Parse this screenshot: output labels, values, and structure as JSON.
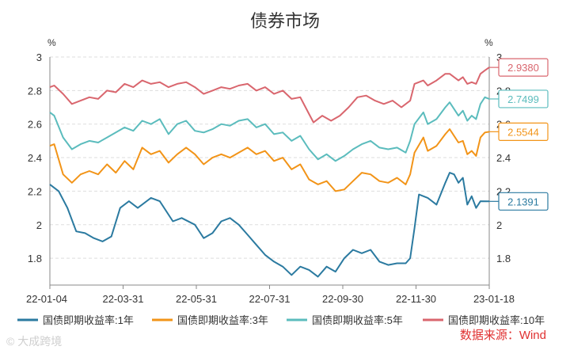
{
  "chart_data": {
    "type": "line",
    "title": "债券市场",
    "unit_left": "%",
    "unit_right": "%",
    "x_tick_labels": [
      "22-01-04",
      "22-03-31",
      "22-05-31",
      "22-07-31",
      "22-09-30",
      "22-11-30",
      "23-01-18"
    ],
    "y_ticks_left": [
      "3",
      "2.8",
      "2.6",
      "2.4",
      "2.2",
      "2",
      "1.8"
    ],
    "y_ticks_right": [
      "3",
      "2.8",
      "2.6",
      "2.4",
      "2.2",
      "2",
      "1.8"
    ],
    "ylim": [
      1.64,
      3.0
    ],
    "grid": "horizontal-dashed",
    "legend_position": "bottom",
    "source": "数据来源：Wind",
    "watermark": "© 大成跨境",
    "series": [
      {
        "name": "国债即期收益率:1年",
        "color": "#2b7aa0",
        "last_label": "2.1391",
        "points": [
          [
            0,
            2.24
          ],
          [
            0.02,
            2.2
          ],
          [
            0.04,
            2.1
          ],
          [
            0.06,
            1.96
          ],
          [
            0.08,
            1.95
          ],
          [
            0.1,
            1.92
          ],
          [
            0.12,
            1.9
          ],
          [
            0.14,
            1.93
          ],
          [
            0.16,
            2.1
          ],
          [
            0.18,
            2.14
          ],
          [
            0.2,
            2.1
          ],
          [
            0.23,
            2.16
          ],
          [
            0.25,
            2.14
          ],
          [
            0.28,
            2.02
          ],
          [
            0.3,
            2.04
          ],
          [
            0.33,
            2.0
          ],
          [
            0.35,
            1.92
          ],
          [
            0.37,
            1.95
          ],
          [
            0.39,
            2.02
          ],
          [
            0.41,
            2.04
          ],
          [
            0.43,
            2.0
          ],
          [
            0.45,
            1.94
          ],
          [
            0.47,
            1.88
          ],
          [
            0.49,
            1.82
          ],
          [
            0.51,
            1.78
          ],
          [
            0.53,
            1.75
          ],
          [
            0.55,
            1.7
          ],
          [
            0.57,
            1.75
          ],
          [
            0.59,
            1.73
          ],
          [
            0.61,
            1.69
          ],
          [
            0.63,
            1.75
          ],
          [
            0.65,
            1.72
          ],
          [
            0.67,
            1.8
          ],
          [
            0.69,
            1.85
          ],
          [
            0.71,
            1.83
          ],
          [
            0.73,
            1.85
          ],
          [
            0.75,
            1.78
          ],
          [
            0.77,
            1.76
          ],
          [
            0.79,
            1.77
          ],
          [
            0.81,
            1.77
          ],
          [
            0.82,
            1.8
          ],
          [
            0.83,
            1.98
          ],
          [
            0.84,
            2.18
          ],
          [
            0.86,
            2.16
          ],
          [
            0.88,
            2.12
          ],
          [
            0.9,
            2.25
          ],
          [
            0.91,
            2.31
          ],
          [
            0.92,
            2.3
          ],
          [
            0.93,
            2.25
          ],
          [
            0.94,
            2.28
          ],
          [
            0.95,
            2.12
          ],
          [
            0.96,
            2.17
          ],
          [
            0.97,
            2.1
          ],
          [
            0.98,
            2.14
          ],
          [
            1,
            2.1391
          ]
        ]
      },
      {
        "name": "国债即期收益率:3年",
        "color": "#f29418",
        "last_label": "2.5544",
        "points": [
          [
            0,
            2.47
          ],
          [
            0.01,
            2.48
          ],
          [
            0.03,
            2.3
          ],
          [
            0.05,
            2.25
          ],
          [
            0.07,
            2.3
          ],
          [
            0.09,
            2.32
          ],
          [
            0.11,
            2.3
          ],
          [
            0.13,
            2.36
          ],
          [
            0.15,
            2.31
          ],
          [
            0.17,
            2.38
          ],
          [
            0.19,
            2.33
          ],
          [
            0.21,
            2.46
          ],
          [
            0.23,
            2.42
          ],
          [
            0.25,
            2.44
          ],
          [
            0.27,
            2.37
          ],
          [
            0.29,
            2.42
          ],
          [
            0.31,
            2.46
          ],
          [
            0.33,
            2.42
          ],
          [
            0.35,
            2.36
          ],
          [
            0.37,
            2.4
          ],
          [
            0.39,
            2.42
          ],
          [
            0.41,
            2.4
          ],
          [
            0.43,
            2.43
          ],
          [
            0.45,
            2.46
          ],
          [
            0.47,
            2.42
          ],
          [
            0.49,
            2.44
          ],
          [
            0.51,
            2.38
          ],
          [
            0.53,
            2.4
          ],
          [
            0.55,
            2.33
          ],
          [
            0.57,
            2.36
          ],
          [
            0.59,
            2.27
          ],
          [
            0.61,
            2.24
          ],
          [
            0.63,
            2.26
          ],
          [
            0.65,
            2.2
          ],
          [
            0.67,
            2.21
          ],
          [
            0.69,
            2.26
          ],
          [
            0.71,
            2.31
          ],
          [
            0.73,
            2.3
          ],
          [
            0.75,
            2.26
          ],
          [
            0.77,
            2.25
          ],
          [
            0.79,
            2.28
          ],
          [
            0.81,
            2.24
          ],
          [
            0.82,
            2.3
          ],
          [
            0.83,
            2.43
          ],
          [
            0.85,
            2.52
          ],
          [
            0.86,
            2.44
          ],
          [
            0.88,
            2.47
          ],
          [
            0.9,
            2.54
          ],
          [
            0.91,
            2.57
          ],
          [
            0.93,
            2.49
          ],
          [
            0.94,
            2.5
          ],
          [
            0.95,
            2.42
          ],
          [
            0.96,
            2.44
          ],
          [
            0.97,
            2.41
          ],
          [
            0.98,
            2.52
          ],
          [
            0.99,
            2.55
          ],
          [
            1,
            2.5544
          ]
        ]
      },
      {
        "name": "国债即期收益率:5年",
        "color": "#5bbcbd",
        "last_label": "2.7499",
        "points": [
          [
            0,
            2.67
          ],
          [
            0.01,
            2.65
          ],
          [
            0.03,
            2.52
          ],
          [
            0.05,
            2.45
          ],
          [
            0.07,
            2.48
          ],
          [
            0.09,
            2.5
          ],
          [
            0.11,
            2.49
          ],
          [
            0.13,
            2.52
          ],
          [
            0.15,
            2.55
          ],
          [
            0.17,
            2.58
          ],
          [
            0.19,
            2.56
          ],
          [
            0.21,
            2.62
          ],
          [
            0.23,
            2.6
          ],
          [
            0.25,
            2.63
          ],
          [
            0.27,
            2.54
          ],
          [
            0.29,
            2.6
          ],
          [
            0.31,
            2.62
          ],
          [
            0.33,
            2.56
          ],
          [
            0.35,
            2.55
          ],
          [
            0.37,
            2.57
          ],
          [
            0.39,
            2.6
          ],
          [
            0.41,
            2.59
          ],
          [
            0.43,
            2.62
          ],
          [
            0.45,
            2.63
          ],
          [
            0.47,
            2.58
          ],
          [
            0.49,
            2.6
          ],
          [
            0.51,
            2.54
          ],
          [
            0.53,
            2.55
          ],
          [
            0.55,
            2.5
          ],
          [
            0.57,
            2.53
          ],
          [
            0.59,
            2.45
          ],
          [
            0.61,
            2.39
          ],
          [
            0.63,
            2.42
          ],
          [
            0.65,
            2.38
          ],
          [
            0.67,
            2.41
          ],
          [
            0.69,
            2.45
          ],
          [
            0.71,
            2.48
          ],
          [
            0.73,
            2.5
          ],
          [
            0.75,
            2.46
          ],
          [
            0.77,
            2.45
          ],
          [
            0.79,
            2.46
          ],
          [
            0.81,
            2.43
          ],
          [
            0.82,
            2.5
          ],
          [
            0.83,
            2.6
          ],
          [
            0.85,
            2.67
          ],
          [
            0.86,
            2.6
          ],
          [
            0.88,
            2.63
          ],
          [
            0.9,
            2.7
          ],
          [
            0.91,
            2.73
          ],
          [
            0.93,
            2.65
          ],
          [
            0.94,
            2.68
          ],
          [
            0.95,
            2.62
          ],
          [
            0.96,
            2.65
          ],
          [
            0.97,
            2.63
          ],
          [
            0.98,
            2.72
          ],
          [
            0.99,
            2.76
          ],
          [
            1,
            2.7499
          ]
        ]
      },
      {
        "name": "国债即期收益率:10年",
        "color": "#d9666e",
        "last_label": "2.9380",
        "points": [
          [
            0,
            2.82
          ],
          [
            0.01,
            2.83
          ],
          [
            0.03,
            2.78
          ],
          [
            0.05,
            2.72
          ],
          [
            0.07,
            2.74
          ],
          [
            0.09,
            2.76
          ],
          [
            0.11,
            2.75
          ],
          [
            0.13,
            2.8
          ],
          [
            0.15,
            2.79
          ],
          [
            0.17,
            2.84
          ],
          [
            0.19,
            2.82
          ],
          [
            0.21,
            2.86
          ],
          [
            0.23,
            2.84
          ],
          [
            0.25,
            2.85
          ],
          [
            0.27,
            2.82
          ],
          [
            0.29,
            2.84
          ],
          [
            0.31,
            2.85
          ],
          [
            0.33,
            2.82
          ],
          [
            0.35,
            2.78
          ],
          [
            0.37,
            2.8
          ],
          [
            0.39,
            2.82
          ],
          [
            0.41,
            2.81
          ],
          [
            0.43,
            2.83
          ],
          [
            0.45,
            2.84
          ],
          [
            0.47,
            2.8
          ],
          [
            0.49,
            2.82
          ],
          [
            0.51,
            2.78
          ],
          [
            0.53,
            2.8
          ],
          [
            0.55,
            2.75
          ],
          [
            0.57,
            2.76
          ],
          [
            0.59,
            2.66
          ],
          [
            0.6,
            2.61
          ],
          [
            0.62,
            2.65
          ],
          [
            0.64,
            2.62
          ],
          [
            0.66,
            2.65
          ],
          [
            0.68,
            2.7
          ],
          [
            0.7,
            2.76
          ],
          [
            0.72,
            2.77
          ],
          [
            0.74,
            2.74
          ],
          [
            0.76,
            2.72
          ],
          [
            0.78,
            2.74
          ],
          [
            0.8,
            2.7
          ],
          [
            0.82,
            2.74
          ],
          [
            0.83,
            2.84
          ],
          [
            0.85,
            2.86
          ],
          [
            0.86,
            2.83
          ],
          [
            0.88,
            2.86
          ],
          [
            0.9,
            2.9
          ],
          [
            0.91,
            2.9
          ],
          [
            0.93,
            2.86
          ],
          [
            0.94,
            2.88
          ],
          [
            0.95,
            2.84
          ],
          [
            0.96,
            2.85
          ],
          [
            0.97,
            2.84
          ],
          [
            0.98,
            2.9
          ],
          [
            0.99,
            2.92
          ],
          [
            1,
            2.938
          ]
        ]
      }
    ]
  }
}
